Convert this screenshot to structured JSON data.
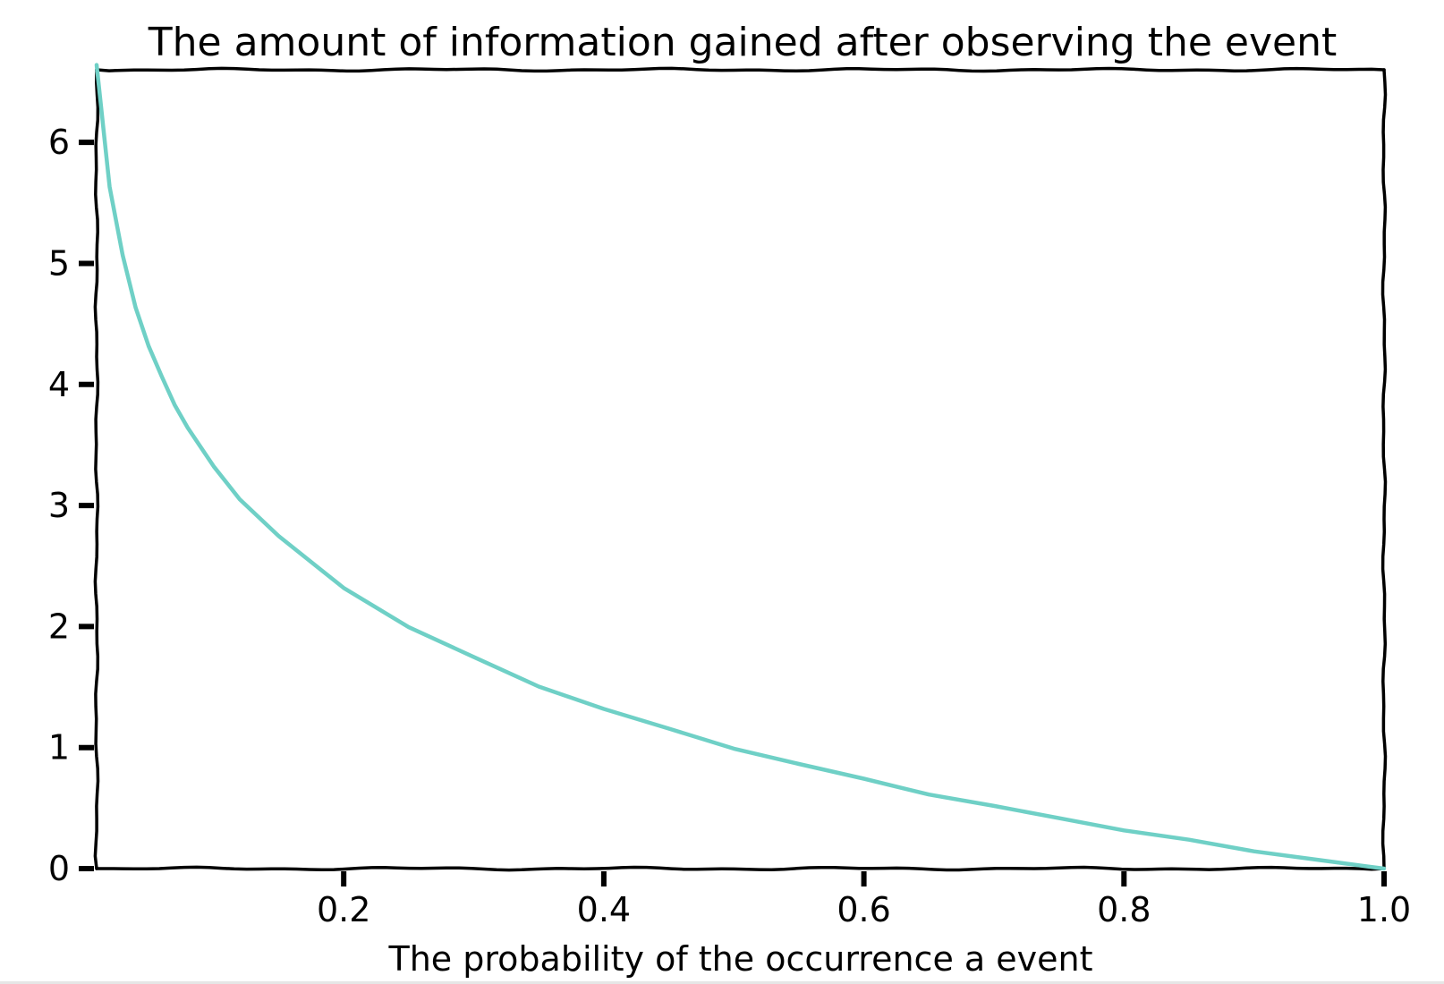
{
  "chart_data": {
    "type": "line",
    "title": "The amount of information gained after observing the event",
    "xlabel": "The probability of the occurrence a event",
    "ylabel": "",
    "xlim": [
      0.01,
      1.0
    ],
    "ylim": [
      0,
      6.6
    ],
    "xticks": [
      0.2,
      0.4,
      0.6,
      0.8,
      1.0
    ],
    "xtick_labels": [
      "0.2",
      "0.4",
      "0.6",
      "0.8",
      "1.0"
    ],
    "yticks": [
      0,
      1,
      2,
      3,
      4,
      5,
      6
    ],
    "ytick_labels": [
      "0",
      "1",
      "2",
      "3",
      "4",
      "5",
      "6"
    ],
    "grid": false,
    "style": "xkcd",
    "series": [
      {
        "color": "#6fd0c6",
        "x": [
          0.01,
          0.02,
          0.03,
          0.04,
          0.05,
          0.06,
          0.07,
          0.08,
          0.1,
          0.12,
          0.15,
          0.2,
          0.25,
          0.3,
          0.35,
          0.4,
          0.45,
          0.5,
          0.55,
          0.6,
          0.65,
          0.7,
          0.75,
          0.8,
          0.85,
          0.9,
          0.95,
          1.0
        ],
        "y": [
          6.64,
          5.64,
          5.06,
          4.64,
          4.32,
          4.06,
          3.84,
          3.64,
          3.32,
          3.06,
          2.74,
          2.32,
          2.0,
          1.74,
          1.51,
          1.32,
          1.15,
          1.0,
          0.86,
          0.74,
          0.62,
          0.51,
          0.42,
          0.32,
          0.23,
          0.15,
          0.07,
          0.0
        ]
      }
    ]
  }
}
